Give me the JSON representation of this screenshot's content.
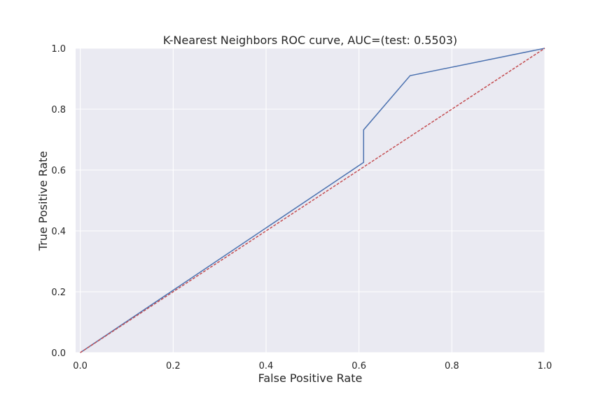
{
  "chart_data": {
    "type": "line",
    "title": "K-Nearest Neighbors ROC curve, AUC=(test: 0.5503)",
    "xlabel": "False Positive Rate",
    "ylabel": "True Positive Rate",
    "xlim": [
      -0.01,
      1.0
    ],
    "ylim": [
      0.0,
      1.0
    ],
    "xticks": [
      0.0,
      0.2,
      0.4,
      0.6,
      0.8,
      1.0
    ],
    "yticks": [
      0.0,
      0.2,
      0.4,
      0.6,
      0.8,
      1.0
    ],
    "xtick_labels": [
      "0.0",
      "0.2",
      "0.4",
      "0.6",
      "0.8",
      "1.0"
    ],
    "ytick_labels": [
      "0.0",
      "0.2",
      "0.4",
      "0.6",
      "0.8",
      "1.0"
    ],
    "grid": true,
    "background": "#eaeaf2",
    "series": [
      {
        "color": "#4c72b0",
        "style": "solid",
        "x": [
          0.0,
          0.61,
          0.61,
          0.71,
          1.0
        ],
        "y": [
          0.0,
          0.625,
          0.732,
          0.91,
          1.0
        ]
      },
      {
        "color": "#c44e52",
        "style": "dashed",
        "x": [
          0.0,
          1.0
        ],
        "y": [
          0.0,
          1.0
        ]
      }
    ]
  }
}
